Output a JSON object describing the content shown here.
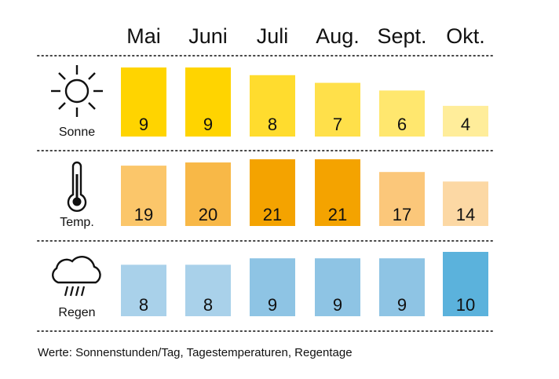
{
  "chart_data": {
    "type": "bar",
    "categories": [
      "Mai",
      "Juni",
      "Juli",
      "Aug.",
      "Sept.",
      "Okt."
    ],
    "rows": [
      {
        "label": "Sonne",
        "icon": "sun-icon",
        "values": [
          9,
          9,
          8,
          7,
          6,
          4
        ],
        "max": 9,
        "colors": [
          "#FFD400",
          "#FFD400",
          "#FFDC2E",
          "#FFE04A",
          "#FFE76E",
          "#FFED9A"
        ]
      },
      {
        "label": "Temp.",
        "icon": "thermometer-icon",
        "values": [
          19,
          20,
          21,
          21,
          17,
          14
        ],
        "max": 21,
        "colors": [
          "#FBC66A",
          "#F8B847",
          "#F4A300",
          "#F4A300",
          "#FBC77A",
          "#FCD8A4"
        ]
      },
      {
        "label": "Regen",
        "icon": "rain-cloud-icon",
        "values": [
          8,
          8,
          9,
          9,
          9,
          10
        ],
        "max": 10,
        "colors": [
          "#A9D1EA",
          "#A9D1EA",
          "#8EC4E4",
          "#8EC4E4",
          "#8EC4E4",
          "#5BB2DC"
        ]
      }
    ],
    "grid": false
  },
  "note": "Werte: Sonnenstunden/Tag, Tagestemperaturen, Regentage"
}
